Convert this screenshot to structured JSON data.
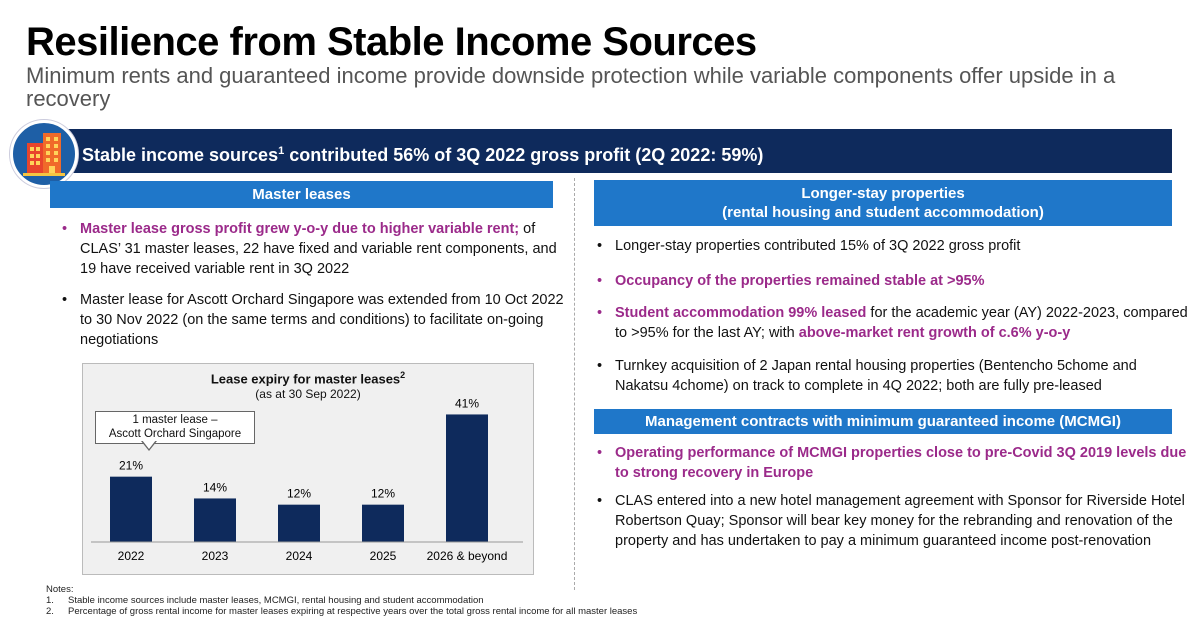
{
  "title": "Resilience from Stable Income Sources",
  "subtitle": "Minimum rents and guaranteed income provide downside protection while variable components offer upside in a recovery",
  "banner": {
    "text_before": "Stable income sources",
    "sup": "1",
    "text_after": " contributed 56% of 3Q 2022 gross profit (2Q 2022: 59%)",
    "icon": "building-icon"
  },
  "left": {
    "header": "Master leases",
    "bullet1_hl": "Master lease gross profit grew y-o-y due to higher variable rent;",
    "bullet1_rest": " of CLAS’ 31 master leases, 22 have fixed and variable rent components, and 19 have received variable rent in 3Q 2022",
    "bullet2": "Master lease for Ascott Orchard Singapore was extended from 10 Oct 2022 to 30 Nov 2022 (on the same terms and conditions) to facilitate on-going negotiations"
  },
  "right": {
    "header1_line1": "Longer-stay properties",
    "header1_line2": "(rental housing and student accommodation)",
    "b1": "Longer-stay properties contributed 15% of 3Q 2022 gross profit",
    "b2": "Occupancy of the properties remained stable at >95%",
    "b3_hl1": "Student accommodation 99% leased",
    "b3_mid": " for the academic year (AY) 2022-2023, compared to >95% for the last AY; with ",
    "b3_hl2": "above-market rent growth of c.6% y-o-y",
    "b4": "Turnkey acquisition of 2 Japan rental housing properties (Bentencho 5chome and Nakatsu 4chome) on track to complete in 4Q 2022; both are fully pre-leased",
    "header2": "Management contracts with minimum guaranteed income (MCMGI)",
    "b5": "Operating performance of MCMGI properties close to pre-Covid 3Q 2019 levels due to strong recovery in Europe",
    "b6": "CLAS entered into a new hotel management agreement with Sponsor for Riverside Hotel Robertson Quay; Sponsor will bear key money for the rebranding and renovation of the property and has undertaken to pay a minimum guaranteed income post-renovation"
  },
  "chart_data": {
    "type": "bar",
    "title": "Lease expiry for master leases",
    "title_sup": "2",
    "subtitle": "(as at 30 Sep 2022)",
    "categories": [
      "2022",
      "2023",
      "2024",
      "2025",
      "2026 & beyond"
    ],
    "values": [
      21,
      14,
      12,
      12,
      41
    ],
    "labels": [
      "21%",
      "14%",
      "12%",
      "12%",
      "41%"
    ],
    "ylim": [
      0,
      45
    ],
    "bar_color": "#0e2a5c",
    "callout_line1": "1 master lease –",
    "callout_line2": "Ascott Orchard Singapore"
  },
  "notes": {
    "heading": "Notes:",
    "n1_num": "1.",
    "n1": "Stable income sources include master leases, MCMGI, rental housing and student accommodation",
    "n2_num": "2.",
    "n2": "Percentage of gross rental income for master leases expiring at respective years over the total gross rental income for all master leases"
  },
  "colors": {
    "navy": "#0e2a5c",
    "blue": "#1f77c9",
    "highlight": "#9b2a8a"
  }
}
